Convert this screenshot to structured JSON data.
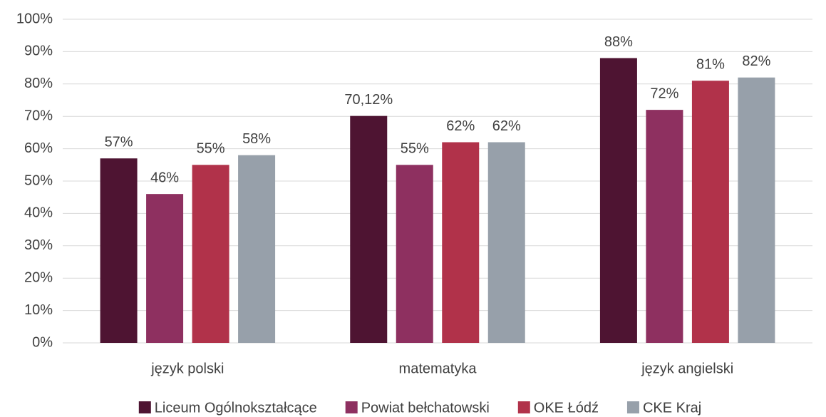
{
  "chart_data": {
    "type": "bar",
    "categories": [
      "język polski",
      "matematyka",
      "język angielski"
    ],
    "series": [
      {
        "name": "Liceum Ogólnokształcące",
        "color": "#4e1432",
        "values": [
          57,
          70.12,
          88
        ],
        "value_labels": [
          "57%",
          "70,12%",
          "88%"
        ]
      },
      {
        "name": "Powiat bełchatowski",
        "color": "#8e3060",
        "values": [
          46,
          55,
          72
        ],
        "value_labels": [
          "46%",
          "55%",
          "72%"
        ]
      },
      {
        "name": "OKE Łódź",
        "color": "#b1324a",
        "values": [
          55,
          62,
          81
        ],
        "value_labels": [
          "55%",
          "62%",
          "81%"
        ]
      },
      {
        "name": "CKE Kraj",
        "color": "#97a0aa",
        "values": [
          58,
          62,
          82
        ],
        "value_labels": [
          "58%",
          "62%",
          "82%"
        ]
      }
    ],
    "ylim": [
      0,
      100
    ],
    "yticks": [
      {
        "value": 0,
        "label": "0%"
      },
      {
        "value": 10,
        "label": "10%"
      },
      {
        "value": 20,
        "label": "20%"
      },
      {
        "value": 30,
        "label": "30%"
      },
      {
        "value": 40,
        "label": "40%"
      },
      {
        "value": 50,
        "label": "50%"
      },
      {
        "value": 60,
        "label": "60%"
      },
      {
        "value": 70,
        "label": "70%"
      },
      {
        "value": 80,
        "label": "80%"
      },
      {
        "value": 90,
        "label": "90%"
      },
      {
        "value": 100,
        "label": "100%"
      }
    ],
    "grid": true,
    "legend": "bottom"
  }
}
